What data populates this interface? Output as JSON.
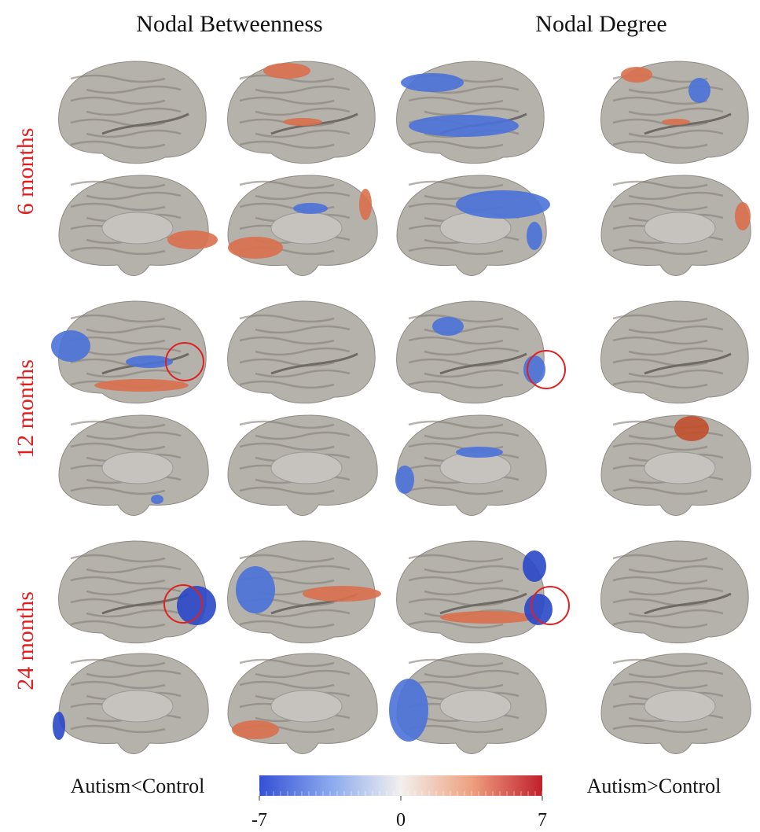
{
  "header": {
    "columns": [
      "Nodal Betweenness",
      "Nodal Degree"
    ]
  },
  "rows": [
    "6 months",
    "12 months",
    "24 months"
  ],
  "legend": {
    "left": "Autism<Control",
    "right": "Autism>Control"
  },
  "colorbar": {
    "range": [
      -7,
      7
    ],
    "ticks": [
      -7,
      0,
      7
    ]
  }
}
